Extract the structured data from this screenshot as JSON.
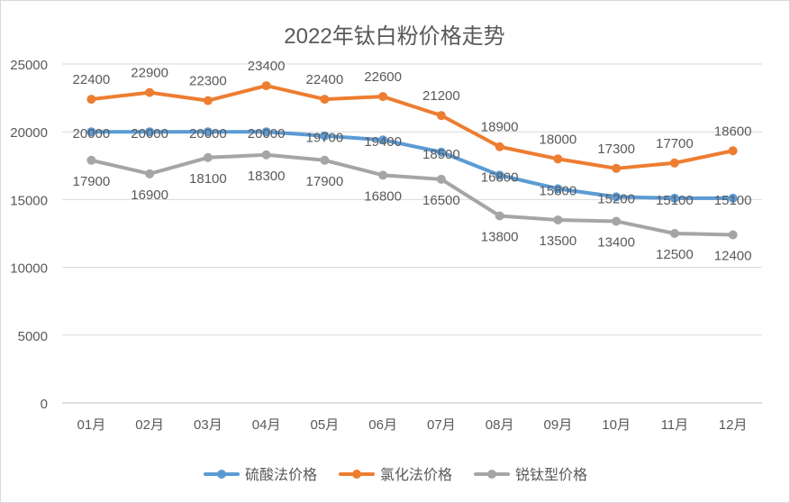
{
  "chart_data": {
    "type": "line",
    "title": "2022年钛白粉价格走势",
    "xlabel": "",
    "ylabel": "",
    "categories": [
      "01月",
      "02月",
      "03月",
      "04月",
      "05月",
      "06月",
      "07月",
      "08月",
      "09月",
      "10月",
      "11月",
      "12月"
    ],
    "ylim": [
      0,
      25000
    ],
    "y_ticks": [
      0,
      5000,
      10000,
      15000,
      20000,
      25000
    ],
    "grid": true,
    "legend": "bottom",
    "series": [
      {
        "name": "硫酸法价格",
        "color": "#5b9bd5",
        "values": [
          20000,
          20000,
          20000,
          20000,
          19700,
          19400,
          18500,
          16800,
          15800,
          15200,
          15100,
          15100
        ],
        "label_position": "on-point"
      },
      {
        "name": "氯化法价格",
        "color": "#ed7d31",
        "values": [
          22400,
          22900,
          22300,
          23400,
          22400,
          22600,
          21200,
          18900,
          18000,
          17300,
          17700,
          18600
        ],
        "label_position": "above"
      },
      {
        "name": "锐钛型价格",
        "color": "#a5a5a5",
        "values": [
          17900,
          16900,
          18100,
          18300,
          17900,
          16800,
          16500,
          13800,
          13500,
          13400,
          12500,
          12400
        ],
        "label_position": "below"
      }
    ]
  }
}
